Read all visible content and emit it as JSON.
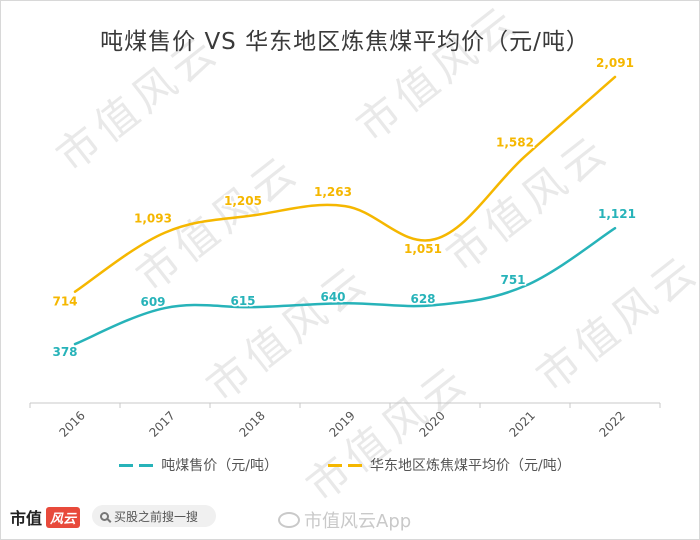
{
  "page": {
    "title": "吨煤售价 VS 华东地区炼焦煤平均价（元/吨）",
    "watermark_text": "市值风云",
    "footer": {
      "logo_text": "市值",
      "logo_badge": "风云",
      "search_placeholder": "买股之前搜一搜",
      "weibo_label": "市值风云App"
    }
  },
  "chart_data": {
    "type": "line",
    "title": "吨煤售价 VS 华东地区炼焦煤平均价（元/吨）",
    "xlabel": "",
    "ylabel": "",
    "categories": [
      "2016",
      "2017",
      "2018",
      "2019",
      "2020",
      "2021",
      "2022"
    ],
    "ylim": [
      0,
      2200
    ],
    "grid": false,
    "legend_position": "bottom",
    "series": [
      {
        "name": "吨煤售价（元/吨）",
        "color": "#27b3b9",
        "values": [
          378,
          609,
          615,
          640,
          628,
          751,
          1121
        ],
        "labels": [
          "378",
          "609",
          "615",
          "640",
          "628",
          "751",
          "1,121"
        ]
      },
      {
        "name": "华东地区炼焦煤平均价（元/吨）",
        "color": "#f5b700",
        "values": [
          714,
          1093,
          1205,
          1263,
          1051,
          1582,
          2091
        ],
        "labels": [
          "714",
          "1,093",
          "1,205",
          "1,263",
          "1,051",
          "1,582",
          "2,091"
        ]
      }
    ]
  }
}
